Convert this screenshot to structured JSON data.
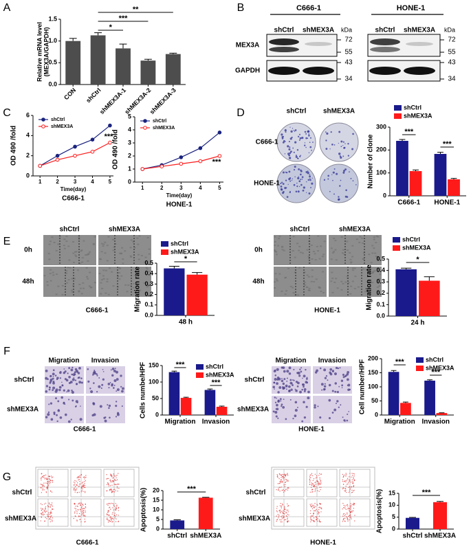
{
  "panel_letters": [
    "A",
    "B",
    "C",
    "D",
    "E",
    "F",
    "G"
  ],
  "blots": {
    "cell_lines": [
      "C666-1",
      "HONE-1"
    ],
    "lanes": [
      "shCtrl",
      "shMEX3A"
    ],
    "unit": "kDa",
    "proteins": [
      "MEX3A",
      "GAPDH"
    ],
    "markers": [
      "72",
      "55",
      "43",
      "34"
    ]
  },
  "image_labels": {
    "D": {
      "columns": [
        "shCtrl",
        "shMEX3A"
      ],
      "rows": [
        "C666-1",
        "HONE-1"
      ]
    },
    "E": {
      "columns": [
        "shCtrl",
        "shMEX3A"
      ],
      "rows": [
        "0h",
        "48h"
      ],
      "captions": [
        "C666-1",
        "HONE-1"
      ]
    },
    "F": {
      "columns": [
        "Migration",
        "Invasion"
      ],
      "rows": [
        "shCtrl",
        "shMEX3A"
      ],
      "captions": [
        "C666-1",
        "HONE-1"
      ]
    },
    "G": {
      "rows": [
        "shCtrl",
        "shMEX3A"
      ],
      "captions": [
        "C666-1",
        "HONE-1"
      ]
    }
  },
  "chart_data": [
    {
      "type": "bar",
      "y_label": [
        "Relative mRNA level",
        "(MEX3A/GAPDH)"
      ],
      "categories": [
        "CON",
        "shCtrl",
        "shMEX3A-1",
        "shMEX3A-2",
        "shMEX3A-3"
      ],
      "values": [
        1.0,
        1.13,
        0.83,
        0.55,
        0.7
      ],
      "errors": [
        0.06,
        0.06,
        0.1,
        0.03,
        0.02
      ],
      "color": "#4d4d4d",
      "ylim": [
        0,
        1.5
      ],
      "yticks": [
        {
          "value": 0,
          "label": "0.0"
        },
        0.5,
        {
          "value": 1,
          "label": "1.0"
        },
        1.5
      ],
      "annotations": [
        "*",
        "***",
        "**"
      ]
    },
    {
      "type": "line",
      "title": "C666-1",
      "x_label": "Time(day)",
      "y_label": "OD 490 /fold",
      "x": [
        1,
        2,
        3,
        4,
        5
      ],
      "xlim": [
        0.6,
        5.2
      ],
      "xticks": [
        1,
        2,
        3,
        4,
        5
      ],
      "ylim": [
        0,
        6
      ],
      "yticks": [
        0,
        2,
        4,
        6
      ],
      "legend": "upper left",
      "series": [
        {
          "name": "shCtrl",
          "color": "#1a237e",
          "marker": "filled",
          "values": [
            1,
            2.0,
            2.9,
            3.6,
            5.0
          ]
        },
        {
          "name": "shMEX3A",
          "color": "#ff1a1a",
          "marker": "open",
          "values": [
            1,
            1.6,
            2.0,
            2.4,
            3.3
          ]
        }
      ],
      "annotations": [
        "***"
      ]
    },
    {
      "type": "line",
      "title": "HONE-1",
      "x_label": "Time(day)",
      "y_label": "OD 490 /fold",
      "x": [
        1,
        2,
        3,
        4,
        5
      ],
      "xlim": [
        0.6,
        5.2
      ],
      "xticks": [
        1,
        2,
        3,
        4,
        5
      ],
      "ylim": [
        0,
        5
      ],
      "yticks": [
        0,
        1,
        2,
        3,
        4,
        5
      ],
      "legend": "upper left",
      "series": [
        {
          "name": "shCtrl",
          "color": "#1a237e",
          "marker": "filled",
          "values": [
            1,
            1.3,
            1.9,
            2.6,
            3.8
          ]
        },
        {
          "name": "shMEX3A",
          "color": "#ff1a1a",
          "marker": "open",
          "values": [
            1,
            1.2,
            1.4,
            1.6,
            2.0
          ]
        }
      ],
      "annotations": [
        "***"
      ]
    },
    {
      "type": "bar",
      "y_label": "Number of clone",
      "categories": [
        "C666-1",
        "HONE-1"
      ],
      "ylim": [
        0,
        300
      ],
      "yticks": [
        0,
        100,
        200,
        300
      ],
      "legend": "top",
      "series": [
        {
          "name": "shCtrl",
          "color": "#1a1a8c",
          "values": [
            240,
            183
          ],
          "errors": [
            6,
            7
          ]
        },
        {
          "name": "shMEX3A",
          "color": "#ff1a1a",
          "values": [
            108,
            72
          ],
          "errors": [
            5,
            4
          ]
        }
      ],
      "annotations": [
        "***",
        "***"
      ]
    },
    {
      "type": "bar",
      "y_label": "Migration rate",
      "categories": [
        "48 h"
      ],
      "ylim": [
        0,
        0.5
      ],
      "yticks": [
        {
          "value": 0,
          "label": "0.0"
        },
        0.1,
        0.2,
        0.3,
        0.4,
        0.5
      ],
      "legend": "top",
      "series": [
        {
          "name": "shCtrl",
          "color": "#1a1a8c",
          "values": [
            0.45
          ],
          "errors": [
            0.02
          ]
        },
        {
          "name": "shMEX3A",
          "color": "#ff1a1a",
          "values": [
            0.39
          ],
          "errors": [
            0.02
          ]
        }
      ],
      "annotations": [
        "*"
      ]
    },
    {
      "type": "bar",
      "y_label": "Migration rate",
      "categories": [
        "24 h"
      ],
      "ylim": [
        0,
        0.5
      ],
      "yticks": [
        {
          "value": 0,
          "label": "0.0"
        },
        0.1,
        0.2,
        0.3,
        0.4,
        0.5
      ],
      "legend": "top",
      "series": [
        {
          "name": "shCtrl",
          "color": "#1a1a8c",
          "values": [
            0.41
          ],
          "errors": [
            0.01
          ]
        },
        {
          "name": "shMEX3A",
          "color": "#ff1a1a",
          "values": [
            0.31
          ],
          "errors": [
            0.035
          ]
        }
      ],
      "annotations": [
        "*"
      ]
    },
    {
      "type": "bar",
      "y_label": "Cells numbe/HPF",
      "categories": [
        "Migration",
        "Invasion"
      ],
      "ylim": [
        0,
        150
      ],
      "yticks": [
        0,
        50,
        100,
        150
      ],
      "legend": "upper right",
      "series": [
        {
          "name": "shCtrl",
          "color": "#1a1a8c",
          "values": [
            130,
            76
          ],
          "errors": [
            3,
            3
          ]
        },
        {
          "name": "shMEX3A",
          "color": "#ff1a1a",
          "values": [
            52,
            25
          ],
          "errors": [
            2,
            2
          ]
        }
      ],
      "annotations": [
        "***",
        "***"
      ]
    },
    {
      "type": "bar",
      "y_label": "Cell number/HPF",
      "categories": [
        "Migration",
        "Invasion"
      ],
      "ylim": [
        0,
        200
      ],
      "yticks": [
        0,
        50,
        100,
        150,
        200
      ],
      "legend": "upper right",
      "series": [
        {
          "name": "shCtrl",
          "color": "#1a1a8c",
          "values": [
            153,
            122
          ],
          "errors": [
            5,
            3
          ]
        },
        {
          "name": "shMEX3A",
          "color": "#ff1a1a",
          "values": [
            43,
            7
          ],
          "errors": [
            3,
            1
          ]
        }
      ],
      "annotations": [
        "***",
        "***"
      ]
    },
    {
      "type": "bar",
      "y_label": "Apoptosis(%)",
      "categories": [
        "shCtrl",
        "shMEX3A"
      ],
      "values": [
        4.5,
        16.3
      ],
      "errors": [
        0.3,
        0.2
      ],
      "colors": [
        "#1a1a8c",
        "#ff1a1a"
      ],
      "ylim": [
        0,
        20
      ],
      "yticks": [
        0,
        5,
        10,
        15,
        20
      ],
      "annotations": [
        "***"
      ]
    },
    {
      "type": "bar",
      "y_label": "Apoptosis(%)",
      "categories": [
        "shCtrl",
        "shMEX3A"
      ],
      "values": [
        4.7,
        11.3
      ],
      "errors": [
        0.2,
        0.3
      ],
      "colors": [
        "#1a1a8c",
        "#ff1a1a"
      ],
      "ylim": [
        0,
        15
      ],
      "yticks": [
        0,
        5,
        10,
        15
      ],
      "annotations": [
        "***"
      ]
    }
  ]
}
